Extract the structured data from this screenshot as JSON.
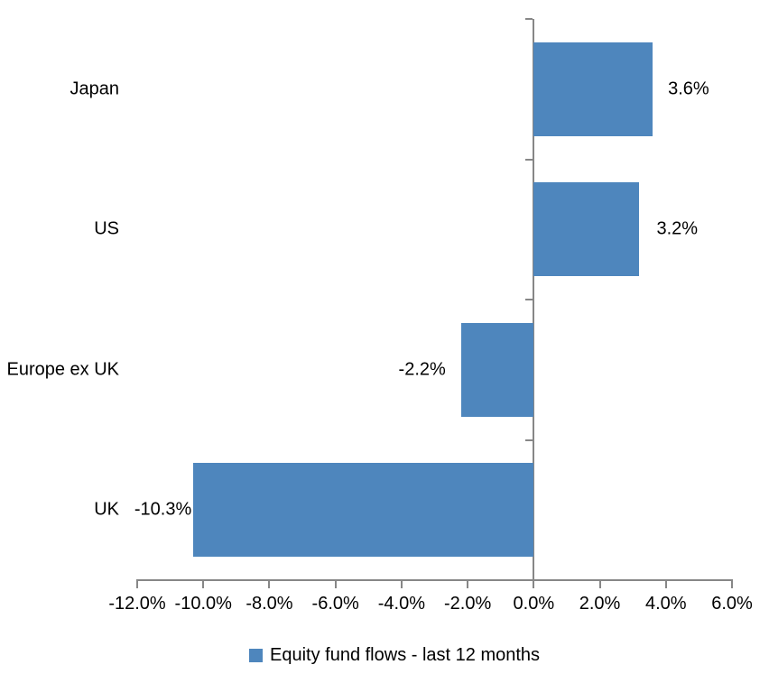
{
  "chart_data": {
    "type": "bar",
    "orientation": "horizontal",
    "title": "",
    "xlabel": "",
    "ylabel": "",
    "categories": [
      "Japan",
      "US",
      "Europe ex UK",
      "UK"
    ],
    "values": [
      3.6,
      3.2,
      -2.2,
      -10.3
    ],
    "value_labels": [
      "3.6%",
      "3.2%",
      "-2.2%",
      "-10.3%"
    ],
    "series_name": "Equity fund flows - last 12 months",
    "xlim": [
      -12,
      6
    ],
    "x_tick_values": [
      -12,
      -10,
      -8,
      -6,
      -4,
      -2,
      0,
      2,
      4,
      6
    ],
    "x_tick_labels": [
      "-12.0%",
      "-10.0%",
      "-8.0%",
      "-6.0%",
      "-4.0%",
      "-2.0%",
      "0.0%",
      "2.0%",
      "4.0%",
      "6.0%"
    ],
    "grid": false,
    "legend_position": "bottom",
    "bar_color": "#4E86BD",
    "axis_color": "#878787",
    "text_color": "#000000"
  }
}
